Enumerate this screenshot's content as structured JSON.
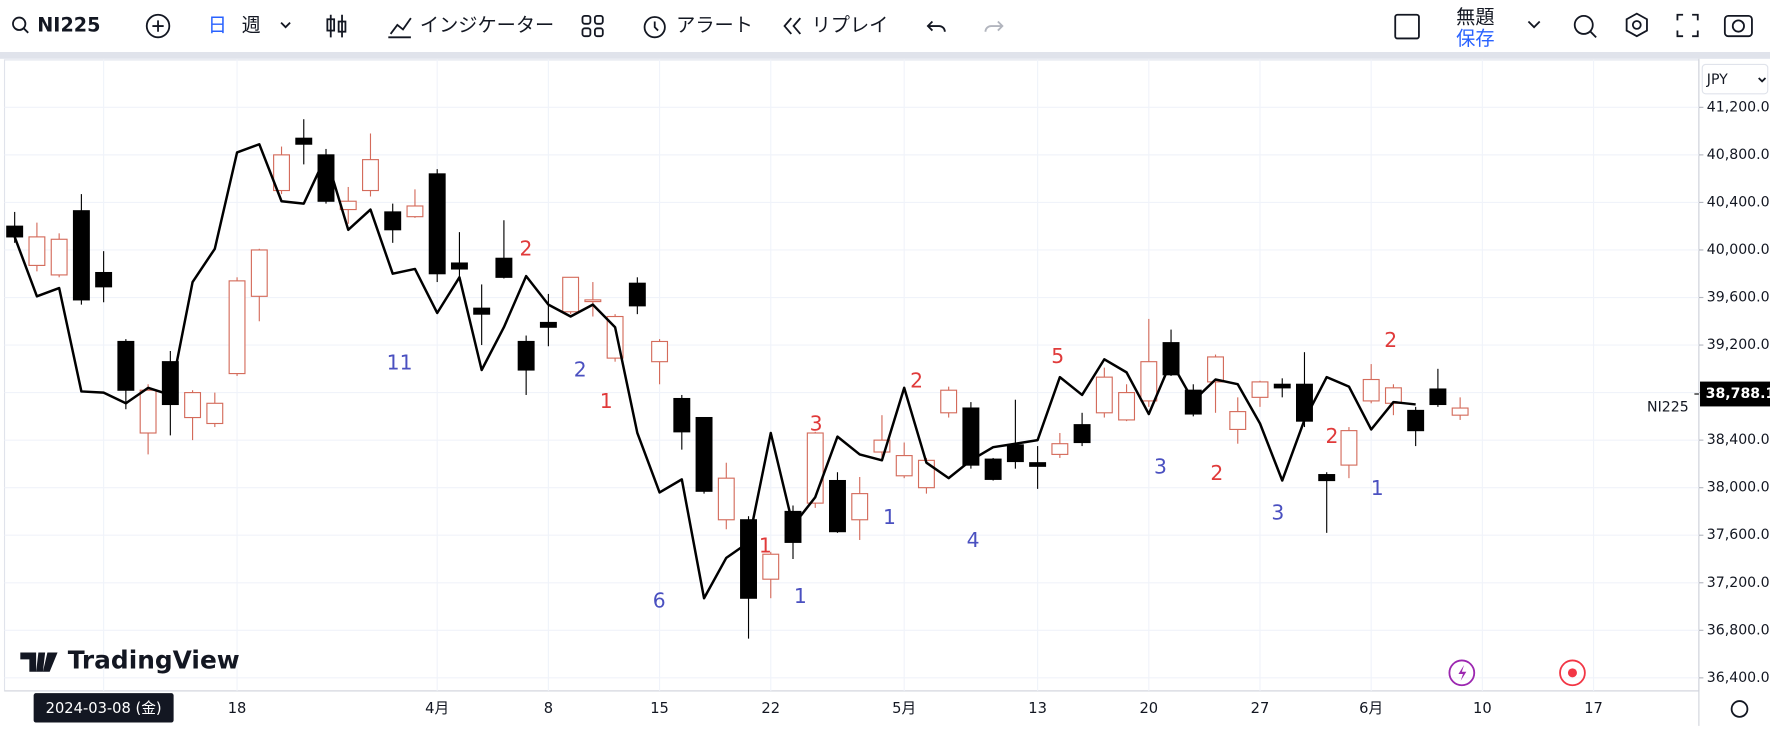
{
  "toolbar": {
    "symbol": "NI225",
    "interval_day": "日",
    "interval_week": "週",
    "indicators": "インジケーター",
    "alert": "アラート",
    "replay": "リプレイ",
    "layout_name": "無題",
    "layout_save": "保存"
  },
  "chart_data": {
    "type": "candlestick",
    "currency": "JPY",
    "watermark": "TradingView",
    "categories": [
      null,
      null,
      null,
      null,
      "2024-03-08 (金)",
      null,
      null,
      null,
      null,
      null,
      "18",
      null,
      null,
      null,
      null,
      null,
      null,
      null,
      null,
      "4月",
      null,
      null,
      null,
      null,
      "8",
      null,
      null,
      null,
      null,
      "15",
      null,
      null,
      null,
      null,
      "22",
      null,
      null,
      null,
      null,
      null,
      "5月",
      null,
      null,
      null,
      null,
      null,
      "13",
      null,
      null,
      null,
      null,
      "20",
      null,
      null,
      null,
      null,
      "27",
      null,
      null,
      null,
      null,
      "6月",
      null,
      null,
      null,
      null,
      "10",
      null,
      null,
      null,
      null,
      "17"
    ],
    "open": [
      40200,
      39870,
      39790,
      40330,
      39810,
      39230,
      38460,
      39060,
      38590,
      38540,
      38960,
      39610,
      40500,
      40940,
      40800,
      40340,
      40500,
      40320,
      40280,
      40640,
      39890,
      39510,
      39930,
      39230,
      39390,
      39480,
      39580,
      39090,
      39720,
      39060,
      38750,
      38590,
      37730,
      37730,
      37230,
      37800,
      37870,
      38060,
      37730,
      38300,
      38100,
      38000,
      38630,
      38670,
      38240,
      38360,
      38210,
      38280,
      38530,
      38630,
      38570,
      38730,
      39220,
      38820,
      38890,
      38490,
      38760,
      38870,
      38870,
      38110,
      38190,
      38730,
      38710,
      38650,
      38830,
      38610,
      null,
      null,
      null,
      null,
      null,
      null
    ],
    "high": [
      40320,
      40230,
      40140,
      40470,
      39990,
      39250,
      38870,
      39150,
      38820,
      38800,
      39770,
      40010,
      40870,
      41100,
      40850,
      40530,
      40980,
      40390,
      40510,
      40680,
      40150,
      39710,
      40250,
      39280,
      39630,
      39770,
      39730,
      39460,
      39770,
      39250,
      38780,
      38590,
      38210,
      37760,
      37460,
      37850,
      38470,
      38130,
      38090,
      38610,
      38380,
      38250,
      38850,
      38720,
      38250,
      38740,
      38350,
      38460,
      38630,
      39010,
      38870,
      39420,
      39330,
      38870,
      39120,
      38760,
      38900,
      38920,
      39140,
      38130,
      38510,
      39040,
      38870,
      38680,
      39000,
      38760,
      null,
      null,
      null,
      null,
      null,
      null
    ],
    "low": [
      40060,
      39820,
      39770,
      39540,
      39560,
      38660,
      38280,
      38440,
      38400,
      38510,
      38940,
      39400,
      40470,
      40720,
      40390,
      40220,
      40450,
      40060,
      40270,
      39730,
      39750,
      39200,
      39760,
      38780,
      39190,
      39460,
      39440,
      39060,
      39460,
      38870,
      38320,
      37950,
      37650,
      36730,
      37070,
      37400,
      37830,
      37620,
      37560,
      38250,
      38080,
      37950,
      38590,
      38160,
      38060,
      38160,
      37990,
      38250,
      38350,
      38590,
      38560,
      38680,
      38940,
      38600,
      38630,
      38370,
      38680,
      38760,
      38510,
      37620,
      38080,
      38710,
      38610,
      38350,
      38680,
      38570,
      null,
      null,
      null,
      null,
      null,
      null
    ],
    "close": [
      40110,
      40110,
      40090,
      39580,
      39690,
      38820,
      38820,
      38700,
      38800,
      38710,
      39740,
      40000,
      40800,
      40890,
      40410,
      40410,
      40760,
      40170,
      40370,
      39800,
      39840,
      39460,
      39770,
      38990,
      39350,
      39770,
      39580,
      39440,
      39530,
      39230,
      38470,
      37970,
      38080,
      37070,
      37440,
      37540,
      38460,
      37630,
      37950,
      38400,
      38270,
      38230,
      38820,
      38190,
      38070,
      38220,
      38180,
      38370,
      38380,
      38930,
      38800,
      39060,
      38950,
      38620,
      39100,
      38640,
      38890,
      38840,
      38560,
      38060,
      38480,
      38910,
      38840,
      38480,
      38700,
      38670,
      null,
      null,
      null,
      null,
      null,
      null
    ],
    "up_color": "#d46b5b",
    "down_color": "#000000",
    "line_color": "#000000",
    "line_values": [
      40110,
      39610,
      39680,
      38810,
      38800,
      38710,
      38840,
      38780,
      39730,
      40010,
      40820,
      40890,
      40410,
      40390,
      40790,
      40170,
      40340,
      39800,
      39840,
      39470,
      39770,
      38990,
      39350,
      39780,
      39540,
      39440,
      39540,
      39350,
      38460,
      37960,
      38070,
      37070,
      37410,
      37540,
      38460,
      37680,
      37920,
      38430,
      38280,
      38230,
      38840,
      38210,
      38080,
      38230,
      38340,
      38370,
      38400,
      38930,
      38780,
      39080,
      38970,
      38620,
      39060,
      38730,
      38910,
      38870,
      38540,
      38060,
      38570,
      38930,
      38850,
      38490,
      38720,
      38700,
      null,
      null,
      null,
      null,
      null,
      null,
      null,
      null
    ],
    "last_price": {
      "value": 38788.1,
      "label": "38,788.1"
    },
    "last_price_name": "NI225",
    "last_price_color": "#000000",
    "ylim": [
      36290,
      41580
    ],
    "yticks": [
      {
        "value": 36400,
        "label": "36,400.0"
      },
      {
        "value": 36800,
        "label": "36,800.0"
      },
      {
        "value": 37200,
        "label": "37,200.0"
      },
      {
        "value": 37600,
        "label": "37,600.0"
      },
      {
        "value": 38000,
        "label": "38,000.0"
      },
      {
        "value": 38400,
        "label": "38,400.0"
      },
      {
        "value": 38800,
        "label": "38,800.0"
      },
      {
        "value": 39200,
        "label": "39,200.0"
      },
      {
        "value": 39600,
        "label": "39,600.0"
      },
      {
        "value": 40000,
        "label": "40,000.0"
      },
      {
        "value": 40400,
        "label": "40,400.0"
      },
      {
        "value": 40800,
        "label": "40,800.0"
      },
      {
        "value": 41200,
        "label": "41,200.0"
      }
    ],
    "grid": true,
    "annotations": [
      {
        "text": "2",
        "color": "#e03a3a"
      },
      {
        "text": "11",
        "color": "#4a50c0"
      },
      {
        "text": "2",
        "color": "#4a50c0"
      },
      {
        "text": "1",
        "color": "#e03a3a"
      },
      {
        "text": "6",
        "color": "#4a50c0"
      },
      {
        "text": "1",
        "color": "#e03a3a"
      },
      {
        "text": "1",
        "color": "#4a50c0"
      },
      {
        "text": "3",
        "color": "#e03a3a"
      },
      {
        "text": "1",
        "color": "#4a50c0"
      },
      {
        "text": "2",
        "color": "#e03a3a"
      },
      {
        "text": "4",
        "color": "#4a50c0"
      },
      {
        "text": "5",
        "color": "#e03a3a"
      },
      {
        "text": "3",
        "color": "#4a50c0"
      },
      {
        "text": "2",
        "color": "#e03a3a"
      },
      {
        "text": "3",
        "color": "#4a50c0"
      },
      {
        "text": "2",
        "color": "#e03a3a"
      },
      {
        "text": "1",
        "color": "#4a50c0"
      },
      {
        "text": "2",
        "color": "#e03a3a"
      }
    ]
  }
}
